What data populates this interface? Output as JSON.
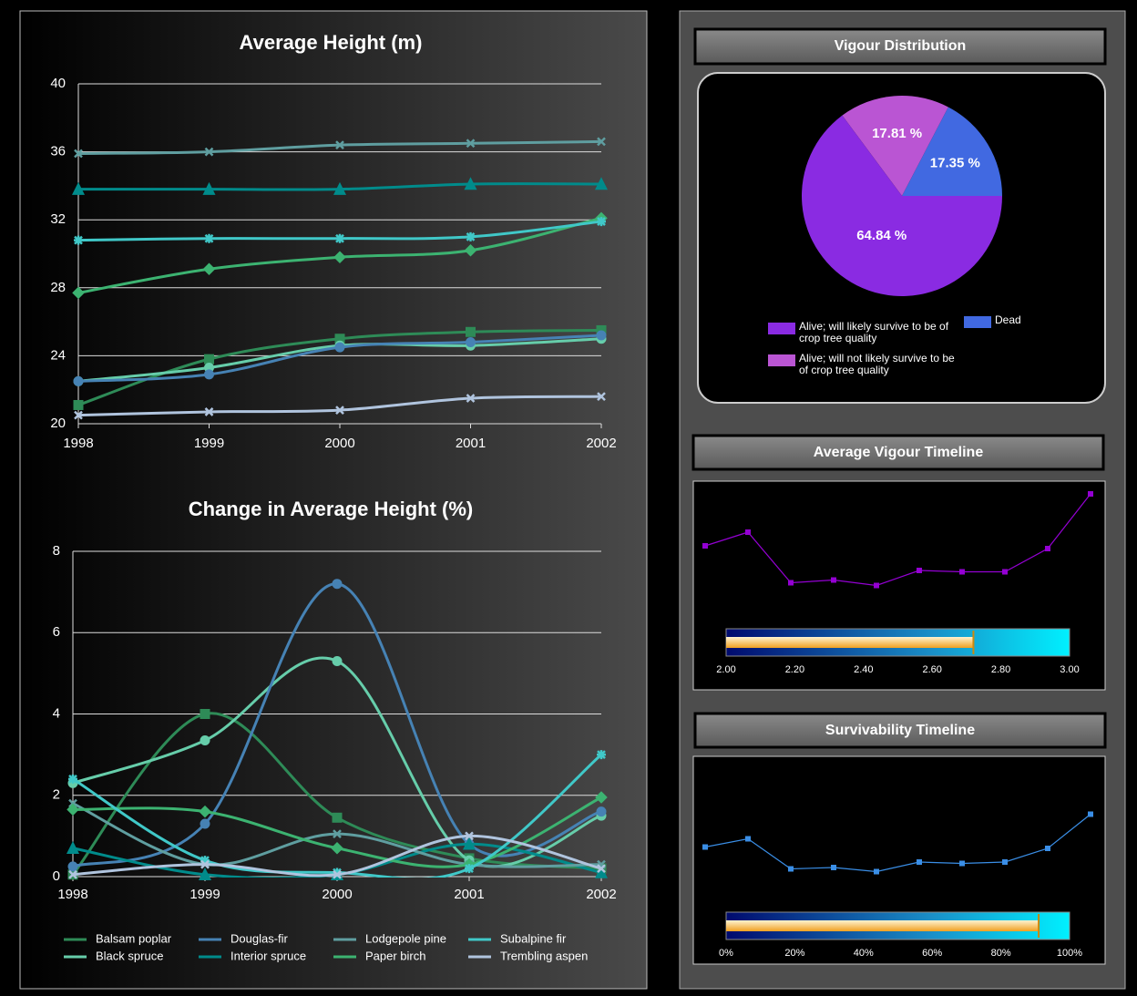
{
  "chart_data": [
    {
      "type": "line",
      "title": "Average Height (m)",
      "smooth": true,
      "grid": true,
      "x": [
        1998,
        1999,
        2000,
        2001,
        2002
      ],
      "xlim": [
        1998,
        2002
      ],
      "xticks": [
        1998,
        1999,
        2000,
        2001,
        2002
      ],
      "ylim": [
        20,
        40
      ],
      "yticks": [
        20,
        24,
        28,
        32,
        36,
        40
      ],
      "series": [
        {
          "color": "#2e8b57",
          "marker": "square",
          "values": [
            21.1,
            23.8,
            25.0,
            25.4,
            25.5
          ]
        },
        {
          "color": "#66cdaa",
          "marker": "circle",
          "values": [
            22.5,
            23.3,
            24.6,
            24.6,
            25.0
          ]
        },
        {
          "color": "#4682b4",
          "marker": "circle",
          "values": [
            22.5,
            22.9,
            24.5,
            24.8,
            25.2
          ]
        },
        {
          "color": "#008b8b",
          "marker": "triangle",
          "values": [
            33.8,
            33.8,
            33.8,
            34.1,
            34.1
          ]
        },
        {
          "color": "#5f9ea0",
          "marker": "x",
          "values": [
            35.9,
            36.0,
            36.4,
            36.5,
            36.6
          ]
        },
        {
          "color": "#3cb371",
          "marker": "diamond",
          "values": [
            27.7,
            29.1,
            29.8,
            30.2,
            32.1
          ]
        },
        {
          "color": "#40c8c8",
          "marker": "star",
          "values": [
            30.8,
            30.9,
            30.9,
            31.0,
            31.9
          ]
        },
        {
          "color": "#b0c4de",
          "marker": "x",
          "values": [
            20.5,
            20.7,
            20.8,
            21.5,
            21.6
          ]
        }
      ]
    },
    {
      "type": "line",
      "title": "Change in Average Height (%)",
      "smooth": true,
      "grid": true,
      "legend": "bottom",
      "x": [
        1998,
        1999,
        2000,
        2001,
        2002
      ],
      "xlim": [
        1998,
        2002
      ],
      "xticks": [
        1998,
        1999,
        2000,
        2001,
        2002
      ],
      "ylim": [
        0,
        8
      ],
      "yticks": [
        0,
        2,
        4,
        6,
        8
      ],
      "series": [
        {
          "name": "Balsam poplar",
          "color": "#2e8b57",
          "marker": "square",
          "values": [
            0.05,
            4.0,
            1.45,
            0.45,
            0.2
          ]
        },
        {
          "name": "Black spruce",
          "color": "#66cdaa",
          "marker": "circle",
          "values": [
            2.3,
            3.35,
            5.3,
            0.4,
            1.5
          ]
        },
        {
          "name": "Douglas-fir",
          "color": "#4682b4",
          "marker": "circle",
          "values": [
            0.25,
            1.3,
            7.2,
            0.8,
            1.6
          ]
        },
        {
          "name": "Interior spruce",
          "color": "#008b8b",
          "marker": "triangle",
          "values": [
            0.7,
            0.05,
            0.05,
            0.8,
            0.1
          ]
        },
        {
          "name": "Lodgepole pine",
          "color": "#5f9ea0",
          "marker": "x",
          "values": [
            1.8,
            0.3,
            1.05,
            0.3,
            0.3
          ]
        },
        {
          "name": "Paper birch",
          "color": "#3cb371",
          "marker": "diamond",
          "values": [
            1.65,
            1.6,
            0.7,
            0.3,
            1.95
          ]
        },
        {
          "name": "Subalpine fir",
          "color": "#40c8c8",
          "marker": "star",
          "values": [
            2.4,
            0.4,
            0.1,
            0.2,
            3.0
          ]
        },
        {
          "name": "Trembling aspen",
          "color": "#b0c4de",
          "marker": "x",
          "values": [
            0.05,
            0.3,
            0.05,
            1.0,
            0.2
          ]
        }
      ]
    },
    {
      "type": "pie",
      "title": "Vigour Distribution",
      "categories": [
        "Alive; will likely survive to be of crop tree quality",
        "Alive; will not likely survive to be of crop tree quality",
        "Dead"
      ],
      "values": [
        64.84,
        17.81,
        17.35
      ],
      "value_labels": [
        "64.84 %",
        "17.81 %",
        "17.35 %"
      ],
      "colors": [
        "#8a2be2",
        "#ba55d3",
        "#4169e1"
      ]
    },
    {
      "type": "timeline",
      "title": "Average Vigour Timeline",
      "color": "#9400d3",
      "ylim": [
        2,
        3
      ],
      "values": [
        2.54,
        2.64,
        2.27,
        2.29,
        2.25,
        2.36,
        2.35,
        2.35,
        2.52,
        2.92
      ],
      "gauge": {
        "value": 2.72,
        "xlim": [
          2,
          3
        ],
        "xticks": [
          {
            "value": 2,
            "label": "2.00"
          },
          {
            "value": 2.2,
            "label": "2.20"
          },
          {
            "value": 2.4,
            "label": "2.40"
          },
          {
            "value": 2.6,
            "label": "2.60"
          },
          {
            "value": 2.8,
            "label": "2.80"
          },
          {
            "value": 3,
            "label": "3.00"
          }
        ]
      }
    },
    {
      "type": "timeline",
      "title": "Survivability Timeline",
      "color": "#3a8ee6",
      "ylim": [
        0,
        100
      ],
      "values": [
        47,
        53,
        31,
        32,
        29,
        36,
        35,
        36,
        46,
        71
      ],
      "gauge": {
        "value": 91,
        "xlim": [
          0,
          100
        ],
        "xticks": [
          {
            "value": 0,
            "label": "0%"
          },
          {
            "value": 20,
            "label": "20%"
          },
          {
            "value": 40,
            "label": "40%"
          },
          {
            "value": 60,
            "label": "60%"
          },
          {
            "value": 80,
            "label": "80%"
          },
          {
            "value": 100,
            "label": "100%"
          }
        ]
      }
    }
  ]
}
